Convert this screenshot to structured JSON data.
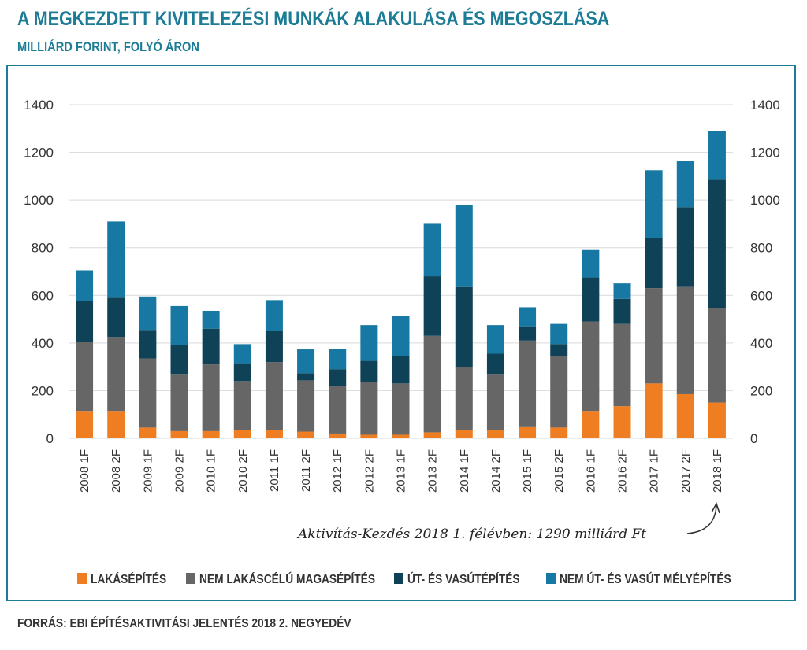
{
  "header": {
    "title": "A MEGKEZDETT KIVITELEZÉSI MUNKÁK ALAKULÁSA ÉS MEGOSZLÁSA",
    "subtitle": "MILLIÁRD FORINT, FOLYÓ ÁRON"
  },
  "footer": {
    "source": "FORRÁS: EBI ÉPÍTÉSAKTIVITÁSI JELENTÉS 2018 2. NEGYEDÉV"
  },
  "annotation": "Aktivítás-Kezdés 2018 1. félévben: 1290 milliárd Ft",
  "colors": {
    "brand": "#1d7c95",
    "series": [
      "#ef7d22",
      "#666666",
      "#0f4257",
      "#1779a3"
    ]
  },
  "chart_data": {
    "type": "bar",
    "stacked": true,
    "title": "A MEGKEZDETT KIVITELEZÉSI MUNKÁK ALAKULÁSA ÉS MEGOSZLÁSA",
    "ylabel": "MILLIÁRD FORINT, FOLYÓ ÁRON",
    "ylim": [
      0,
      1400
    ],
    "yticks": [
      0,
      200,
      400,
      600,
      800,
      1000,
      1200,
      1400
    ],
    "grid": true,
    "legend": "bottom",
    "categories": [
      "2008 1F",
      "2008 2F",
      "2009 1F",
      "2009 2F",
      "2010 1F",
      "2010 2F",
      "2011 1F",
      "2011 2F",
      "2012 1F",
      "2012 2F",
      "2013 1F",
      "2013 2F",
      "2014 1F",
      "2014 2F",
      "2015 1F",
      "2015 2F",
      "2016 1F",
      "2016 2F",
      "2017 1F",
      "2017 2F",
      "2018 1F"
    ],
    "series": [
      {
        "name": "LAKÁSÉPÍTÉS",
        "values": [
          115,
          115,
          45,
          30,
          30,
          35,
          35,
          28,
          20,
          15,
          15,
          25,
          35,
          35,
          50,
          45,
          115,
          135,
          230,
          185,
          150
        ]
      },
      {
        "name": "NEM LAKÁSCÉLÚ MAGASÉPÍTÉS",
        "values": [
          290,
          310,
          290,
          240,
          280,
          205,
          285,
          215,
          200,
          220,
          215,
          405,
          265,
          235,
          360,
          300,
          375,
          345,
          400,
          450,
          395
        ]
      },
      {
        "name": "ÚT- ÉS VASÚTÉPÍTÉS",
        "values": [
          170,
          165,
          120,
          120,
          150,
          75,
          130,
          30,
          70,
          90,
          115,
          250,
          335,
          85,
          60,
          50,
          185,
          105,
          210,
          335,
          540
        ]
      },
      {
        "name": "NEM ÚT- ÉS VASÚT MÉLYÉPÍTÉS",
        "values": [
          130,
          320,
          140,
          165,
          75,
          80,
          130,
          100,
          85,
          150,
          170,
          220,
          345,
          120,
          80,
          85,
          115,
          65,
          285,
          195,
          205
        ]
      }
    ]
  }
}
